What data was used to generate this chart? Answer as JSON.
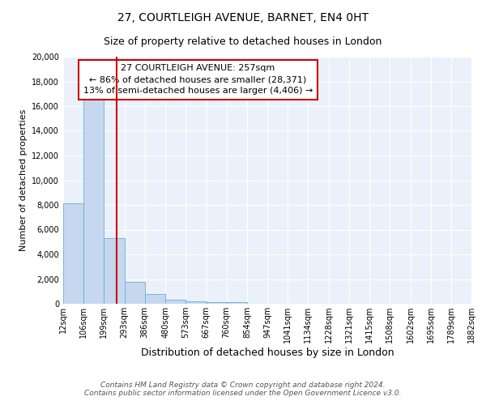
{
  "title1": "27, COURTLEIGH AVENUE, BARNET, EN4 0HT",
  "title2": "Size of property relative to detached houses in London",
  "xlabel": "Distribution of detached houses by size in London",
  "ylabel": "Number of detached properties",
  "bins": [
    12,
    106,
    199,
    293,
    386,
    480,
    573,
    667,
    760,
    854,
    947,
    1041,
    1134,
    1228,
    1321,
    1415,
    1508,
    1602,
    1695,
    1789,
    1882
  ],
  "bin_labels": [
    "12sqm",
    "106sqm",
    "199sqm",
    "293sqm",
    "386sqm",
    "480sqm",
    "573sqm",
    "667sqm",
    "760sqm",
    "854sqm",
    "947sqm",
    "1041sqm",
    "1134sqm",
    "1228sqm",
    "1321sqm",
    "1415sqm",
    "1508sqm",
    "1602sqm",
    "1695sqm",
    "1789sqm",
    "1882sqm"
  ],
  "bar_heights": [
    8100,
    16500,
    5300,
    1800,
    800,
    300,
    200,
    150,
    120,
    0,
    0,
    0,
    0,
    0,
    0,
    0,
    0,
    0,
    0,
    0
  ],
  "bar_color": "#c5d8f0",
  "bar_edgecolor": "#6baed6",
  "property_size": 257,
  "vline_color": "#cc0000",
  "annotation_text": "27 COURTLEIGH AVENUE: 257sqm\n← 86% of detached houses are smaller (28,371)\n13% of semi-detached houses are larger (4,406) →",
  "annotation_box_edgecolor": "#cc0000",
  "ylim": [
    0,
    20000
  ],
  "yticks": [
    0,
    2000,
    4000,
    6000,
    8000,
    10000,
    12000,
    14000,
    16000,
    18000,
    20000
  ],
  "background_color": "#eaf1fb",
  "footer_text": "Contains HM Land Registry data © Crown copyright and database right 2024.\nContains public sector information licensed under the Open Government Licence v3.0.",
  "title1_fontsize": 10,
  "title2_fontsize": 9,
  "xlabel_fontsize": 9,
  "ylabel_fontsize": 8,
  "tick_fontsize": 7,
  "annotation_fontsize": 8,
  "footer_fontsize": 6.5
}
